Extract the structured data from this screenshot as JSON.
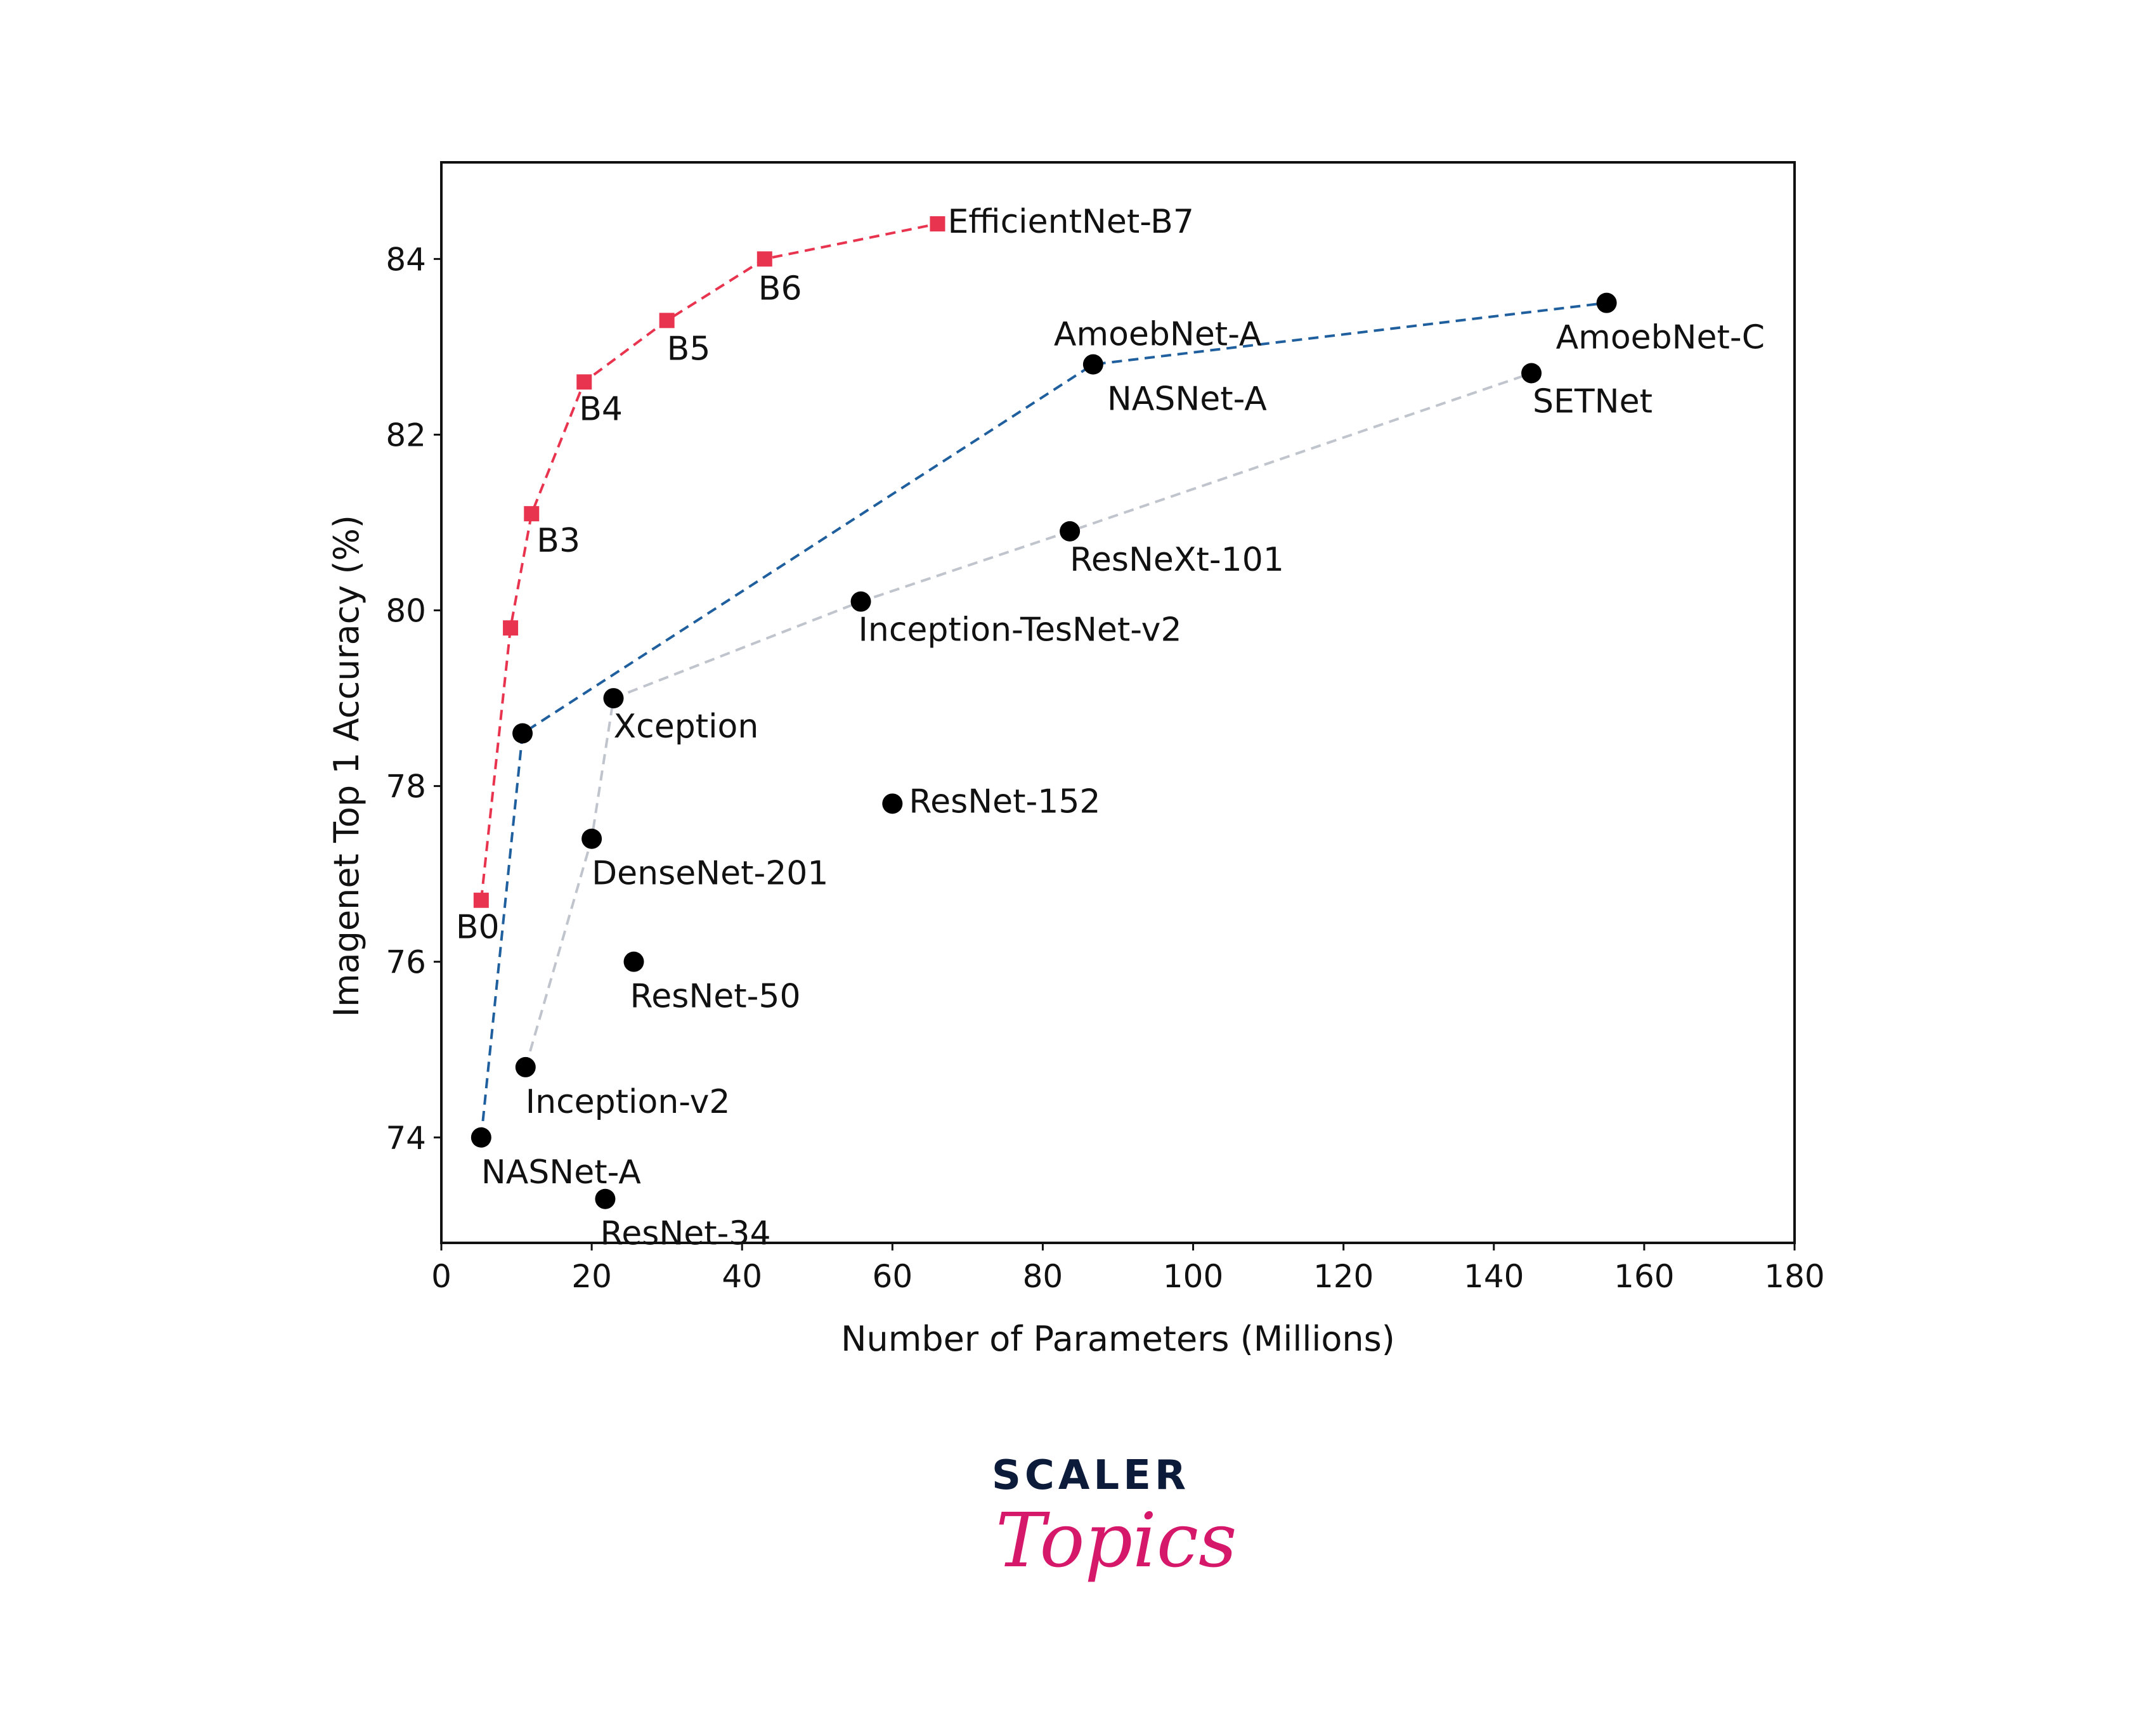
{
  "chart_data": {
    "type": "scatter",
    "title": "",
    "xlabel": "Number of Parameters (Millions)",
    "ylabel": "Imagenet Top 1 Accuracy (%)",
    "xlim": [
      0,
      180
    ],
    "ylim": [
      72.8,
      85.1
    ],
    "xticks": [
      0,
      20,
      40,
      60,
      80,
      100,
      120,
      140,
      160,
      180
    ],
    "yticks": [
      74,
      76,
      78,
      80,
      82,
      84
    ],
    "grid": false,
    "series": [
      {
        "style": "efficientnet",
        "color": "#e8344e",
        "marker": "square",
        "connected": true,
        "points": [
          {
            "x": 5.3,
            "y": 76.7,
            "label": "B0"
          },
          {
            "x": 9.2,
            "y": 79.8,
            "label": ""
          },
          {
            "x": 12.0,
            "y": 81.1,
            "label": "B3"
          },
          {
            "x": 19.0,
            "y": 82.6,
            "label": "B4"
          },
          {
            "x": 30.0,
            "y": 83.3,
            "label": "B5"
          },
          {
            "x": 43.0,
            "y": 84.0,
            "label": "B6"
          },
          {
            "x": 66.0,
            "y": 84.4,
            "label": "EfficientNet-B7"
          }
        ]
      },
      {
        "style": "nas",
        "color": "#1f5f9e",
        "marker": "circle",
        "connected": true,
        "points": [
          {
            "x": 5.3,
            "y": 74.0,
            "label": "NASNet-A"
          },
          {
            "x": 10.8,
            "y": 78.6,
            "label": ""
          },
          {
            "x": 86.7,
            "y": 82.8,
            "label": "NASNet-A",
            "label2": "AmoebNet-A"
          },
          {
            "x": 155.0,
            "y": 83.5,
            "label": "AmoebNet-C"
          }
        ]
      },
      {
        "style": "handcrafted",
        "color": "#c0c4cc",
        "marker": "circle",
        "connected": true,
        "points": [
          {
            "x": 11.2,
            "y": 74.8,
            "label": "Inception-v2"
          },
          {
            "x": 20.0,
            "y": 77.4,
            "label": "DenseNet-201"
          },
          {
            "x": 22.9,
            "y": 79.0,
            "label": "Xception"
          },
          {
            "x": 55.8,
            "y": 80.1,
            "label": "Inception-TesNet-v2"
          },
          {
            "x": 83.6,
            "y": 80.9,
            "label": "ResNeXt-101"
          },
          {
            "x": 145.0,
            "y": 82.7,
            "label": "SETNet"
          }
        ]
      },
      {
        "style": "standalone",
        "color": "#000000",
        "marker": "circle",
        "connected": false,
        "points": [
          {
            "x": 60.0,
            "y": 77.8,
            "label": "ResNet-152"
          },
          {
            "x": 25.6,
            "y": 76.0,
            "label": "ResNet-50"
          },
          {
            "x": 21.8,
            "y": 73.3,
            "label": "ResNet-34"
          }
        ]
      }
    ]
  },
  "logo": {
    "top_text": "SCALER",
    "bottom_text": "Topics"
  }
}
